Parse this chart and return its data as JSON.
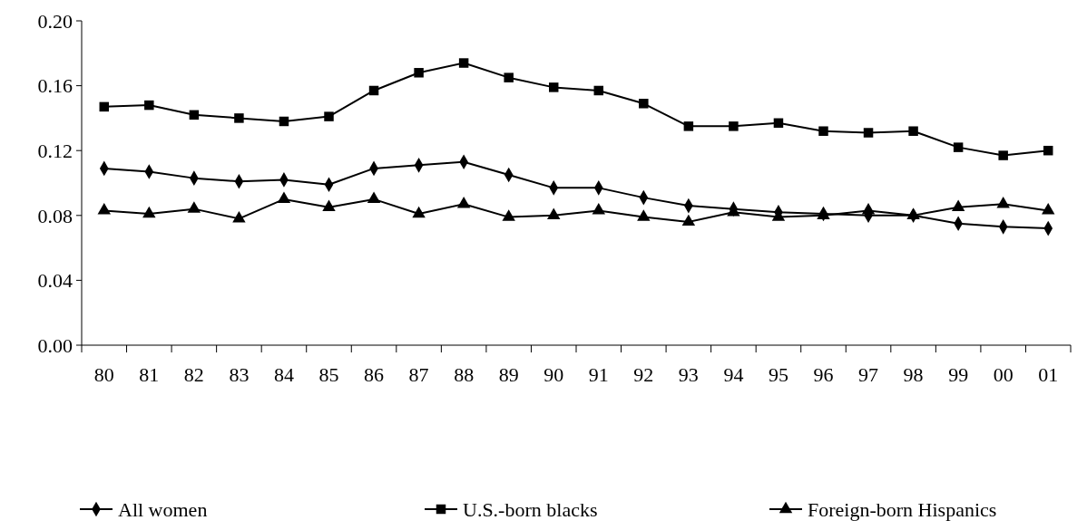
{
  "chart_data": {
    "type": "line",
    "categories": [
      "80",
      "81",
      "82",
      "83",
      "84",
      "85",
      "86",
      "87",
      "88",
      "89",
      "90",
      "91",
      "92",
      "93",
      "94",
      "95",
      "96",
      "97",
      "98",
      "99",
      "00",
      "01"
    ],
    "series": [
      {
        "name": "All women",
        "color": "#000000",
        "marker": "diamond",
        "values": [
          0.109,
          0.107,
          0.103,
          0.101,
          0.102,
          0.099,
          0.109,
          0.111,
          0.113,
          0.105,
          0.097,
          0.097,
          0.091,
          0.086,
          0.084,
          0.082,
          0.081,
          0.08,
          0.08,
          0.075,
          0.073,
          0.072
        ]
      },
      {
        "name": "U.S.-born blacks",
        "color": "#000000",
        "marker": "square",
        "values": [
          0.147,
          0.148,
          0.142,
          0.14,
          0.138,
          0.141,
          0.157,
          0.168,
          0.174,
          0.165,
          0.159,
          0.157,
          0.149,
          0.135,
          0.135,
          0.137,
          0.132,
          0.131,
          0.132,
          0.122,
          0.117,
          0.12
        ]
      },
      {
        "name": "Foreign-born Hispanics",
        "color": "#000000",
        "marker": "triangle",
        "values": [
          0.083,
          0.081,
          0.084,
          0.078,
          0.09,
          0.085,
          0.09,
          0.081,
          0.087,
          0.079,
          0.08,
          0.083,
          0.079,
          0.076,
          0.082,
          0.079,
          0.08,
          0.083,
          0.08,
          0.085,
          0.087,
          0.083
        ]
      }
    ],
    "ylim": [
      0,
      0.2
    ],
    "yticks": [
      {
        "value": 0,
        "label": "0.00"
      },
      {
        "value": 0.04,
        "label": "0.04"
      },
      {
        "value": 0.08,
        "label": "0.08"
      },
      {
        "value": 0.12,
        "label": "0.12"
      },
      {
        "value": 0.16,
        "label": "0.16"
      },
      {
        "value": 0.2,
        "label": "0.20"
      }
    ],
    "grid": false,
    "legend": "bottom",
    "line_style": "solid"
  }
}
